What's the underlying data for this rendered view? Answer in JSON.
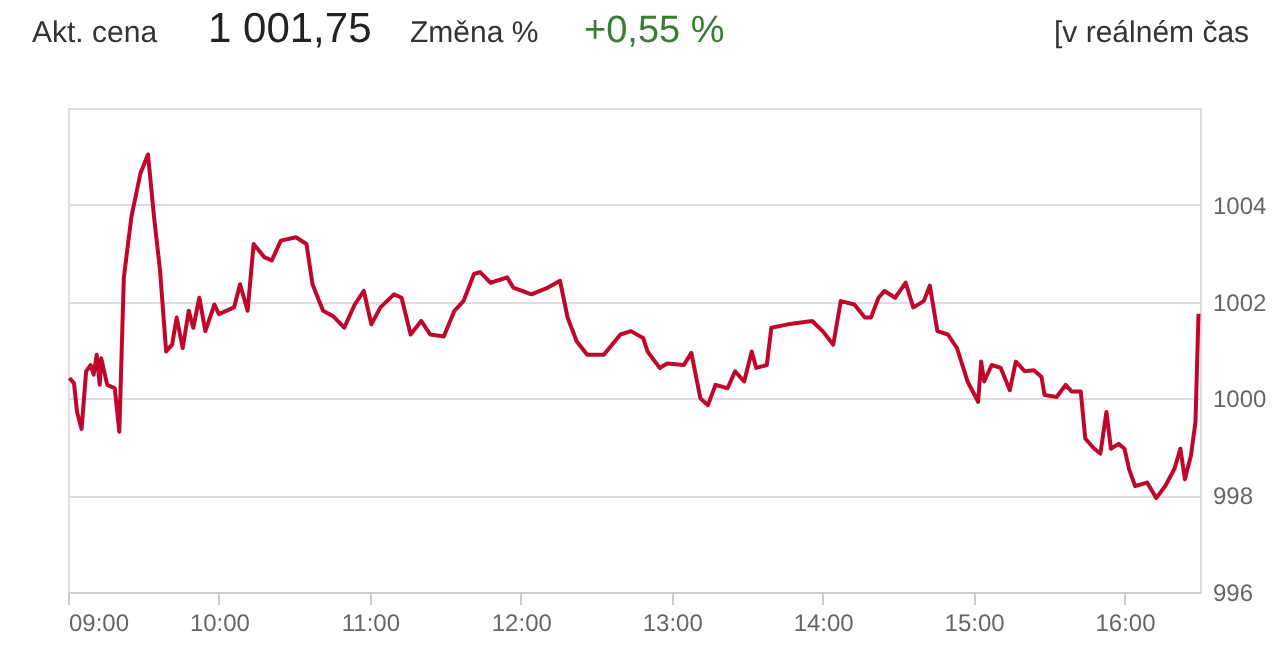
{
  "chart_data": {
    "type": "line",
    "annotations": [
      "Akt. cena",
      "1 001,75",
      "Změna %",
      "+0,55 %",
      "[v reálném čas"
    ],
    "x": [
      9.01,
      9.04,
      9.06,
      9.09,
      9.12,
      9.15,
      9.17,
      9.19,
      9.21,
      9.22,
      9.26,
      9.31,
      9.34,
      9.37,
      9.42,
      9.48,
      9.53,
      9.57,
      9.61,
      9.65,
      9.69,
      9.72,
      9.76,
      9.8,
      9.83,
      9.87,
      9.91,
      9.97,
      10.0,
      10.1,
      10.14,
      10.19,
      10.23,
      10.3,
      10.35,
      10.41,
      10.51,
      10.58,
      10.62,
      10.69,
      10.76,
      10.83,
      10.9,
      10.96,
      11.01,
      11.07,
      11.16,
      11.21,
      11.27,
      11.34,
      11.4,
      11.49,
      11.56,
      11.62,
      11.69,
      11.73,
      11.8,
      11.91,
      11.95,
      12.07,
      12.18,
      12.26,
      12.31,
      12.37,
      12.44,
      12.55,
      12.66,
      12.73,
      12.81,
      12.84,
      12.92,
      12.97,
      13.08,
      13.13,
      13.19,
      13.24,
      13.29,
      13.37,
      13.42,
      13.48,
      13.53,
      13.56,
      13.63,
      13.66,
      13.77,
      13.93,
      14.0,
      14.07,
      14.12,
      14.21,
      14.28,
      14.32,
      14.37,
      14.41,
      14.48,
      14.55,
      14.6,
      14.67,
      14.71,
      14.76,
      14.83,
      14.89,
      14.96,
      15.03,
      15.05,
      15.07,
      15.12,
      15.18,
      15.24,
      15.28,
      15.34,
      15.4,
      15.45,
      15.47,
      15.55,
      15.61,
      15.65,
      15.71,
      15.74,
      15.8,
      15.84,
      15.88,
      15.91,
      15.96,
      16.0,
      16.03,
      16.07,
      16.15,
      16.21,
      16.27,
      16.33,
      16.37,
      16.4,
      16.44,
      16.47,
      16.49
    ],
    "series": [
      {
        "color": "#c0062a",
        "values": [
          1000.42,
          1000.31,
          999.72,
          999.37,
          1000.56,
          1000.69,
          1000.49,
          1000.9,
          1000.28,
          1000.83,
          1000.28,
          1000.21,
          999.31,
          1002.5,
          1003.75,
          1004.65,
          1005.04,
          1003.75,
          1002.64,
          1000.97,
          1001.11,
          1001.67,
          1001.04,
          1001.81,
          1001.46,
          1002.08,
          1001.39,
          1001.94,
          1001.74,
          1001.88,
          1002.36,
          1001.81,
          1003.19,
          1002.92,
          1002.85,
          1003.26,
          1003.33,
          1003.19,
          1002.36,
          1001.81,
          1001.69,
          1001.46,
          1001.94,
          1002.22,
          1001.53,
          1001.88,
          1002.15,
          1002.08,
          1001.32,
          1001.6,
          1001.32,
          1001.28,
          1001.81,
          1002.01,
          1002.57,
          1002.61,
          1002.39,
          1002.5,
          1002.29,
          1002.15,
          1002.29,
          1002.43,
          1001.67,
          1001.18,
          1000.9,
          1000.9,
          1001.32,
          1001.39,
          1001.25,
          1000.97,
          1000.63,
          1000.72,
          1000.69,
          1000.94,
          1000.0,
          999.86,
          1000.28,
          1000.21,
          1000.56,
          1000.35,
          1000.97,
          1000.63,
          1000.69,
          1001.46,
          1001.53,
          1001.6,
          1001.39,
          1001.11,
          1002.01,
          1001.94,
          1001.67,
          1001.67,
          1002.08,
          1002.22,
          1002.08,
          1002.39,
          1001.88,
          1002.01,
          1002.33,
          1001.39,
          1001.32,
          1001.04,
          1000.35,
          999.93,
          1000.76,
          1000.35,
          1000.69,
          1000.63,
          1000.17,
          1000.76,
          1000.56,
          1000.58,
          1000.44,
          1000.07,
          1000.03,
          1000.28,
          1000.14,
          1000.14,
          999.17,
          998.96,
          998.86,
          999.72,
          998.96,
          999.06,
          998.96,
          998.54,
          998.19,
          998.26,
          997.94,
          998.19,
          998.54,
          998.96,
          998.33,
          998.82,
          999.51,
          1001.75
        ]
      }
    ],
    "xlim": [
      9,
      16.5
    ],
    "xticks": [
      {
        "value": 9,
        "label": "09:00"
      },
      {
        "value": 10,
        "label": "10:00"
      },
      {
        "value": 11,
        "label": "11:00"
      },
      {
        "value": 12,
        "label": "12:00"
      },
      {
        "value": 13,
        "label": "13:00"
      },
      {
        "value": 14,
        "label": "14:00"
      },
      {
        "value": 15,
        "label": "15:00"
      },
      {
        "value": 16,
        "label": "16:00"
      }
    ],
    "ylim": [
      996,
      1006
    ],
    "yticks": [
      996,
      998,
      1000,
      1002,
      1004,
      {
        "value": 1006,
        "label": null
      }
    ],
    "grid": "y",
    "marker": "none",
    "line_style": "solid"
  }
}
